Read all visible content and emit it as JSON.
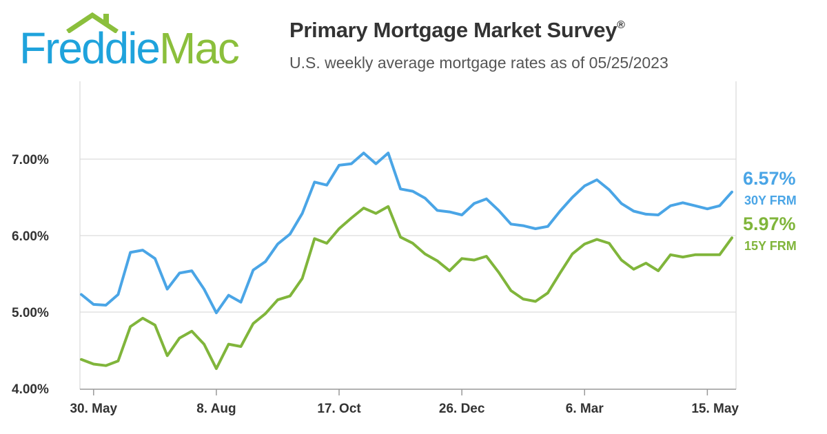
{
  "header": {
    "logo_word1": "Freddie",
    "logo_word2": "Mac",
    "title": "Primary Mortgage Market Survey",
    "title_mark": "®",
    "subtitle": "U.S. weekly average mortgage rates as of 05/25/2023"
  },
  "colors": {
    "frm30": "#4aa5e6",
    "frm15": "#80b53b",
    "grid": "#dcdcdc",
    "text": "#333333"
  },
  "chart_data": {
    "type": "line",
    "title": "Primary Mortgage Market Survey",
    "subtitle": "U.S. weekly average mortgage rates as of 05/25/2023",
    "xlabel": "",
    "ylabel": "",
    "ylim": [
      3.9,
      8.0
    ],
    "yticks": [
      4.0,
      5.0,
      6.0,
      7.0
    ],
    "ytick_labels": [
      "4.00%",
      "5.00%",
      "6.00%",
      "7.00%"
    ],
    "xtick_labels": [
      {
        "label": "30. May",
        "index": 1
      },
      {
        "label": "8. Aug",
        "index": 11
      },
      {
        "label": "17. Oct",
        "index": 21
      },
      {
        "label": "26. Dec",
        "index": 31
      },
      {
        "label": "6. Mar",
        "index": 41
      },
      {
        "label": "15. May",
        "index": 51
      }
    ],
    "grid": true,
    "legend": "right-end-labels",
    "series": [
      {
        "name": "30Y FRM",
        "end_label": "6.57%",
        "values": [
          5.23,
          5.1,
          5.09,
          5.23,
          5.78,
          5.81,
          5.7,
          5.3,
          5.51,
          5.54,
          5.3,
          4.99,
          5.22,
          5.13,
          5.55,
          5.66,
          5.89,
          6.02,
          6.29,
          6.7,
          6.66,
          6.92,
          6.94,
          7.08,
          6.94,
          7.08,
          6.61,
          6.58,
          6.49,
          6.33,
          6.31,
          6.27,
          6.42,
          6.48,
          6.33,
          6.15,
          6.13,
          6.09,
          6.12,
          6.32,
          6.5,
          6.65,
          6.73,
          6.6,
          6.42,
          6.32,
          6.28,
          6.27,
          6.39,
          6.43,
          6.39,
          6.35,
          6.39,
          6.57
        ]
      },
      {
        "name": "15Y FRM",
        "end_label": "5.97%",
        "values": [
          4.38,
          4.32,
          4.3,
          4.36,
          4.81,
          4.92,
          4.83,
          4.43,
          4.66,
          4.75,
          4.58,
          4.26,
          4.58,
          4.55,
          4.85,
          4.98,
          5.16,
          5.21,
          5.44,
          5.96,
          5.9,
          6.09,
          6.23,
          6.36,
          6.29,
          6.38,
          5.98,
          5.9,
          5.76,
          5.67,
          5.54,
          5.7,
          5.68,
          5.73,
          5.52,
          5.28,
          5.17,
          5.14,
          5.25,
          5.51,
          5.76,
          5.89,
          5.95,
          5.9,
          5.68,
          5.56,
          5.64,
          5.54,
          5.75,
          5.72,
          5.75,
          5.75,
          5.75,
          5.97
        ]
      }
    ]
  }
}
